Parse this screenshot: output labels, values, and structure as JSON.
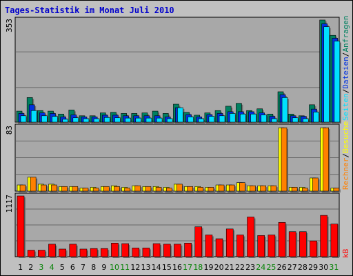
{
  "title": "Tages-Statistik im Monat Juli 2010",
  "colors": {
    "anfragen": "#008060",
    "dateien": "#0030E0",
    "seiten": "#00E0FF",
    "besuche": "#FFFF00",
    "rechner": "#FF8000",
    "kb": "#FF0000",
    "weekend_label": "#008000",
    "weekday_label": "#000000",
    "plot_bg": "#A8A8A8"
  },
  "chart_data": [
    {
      "type": "bar",
      "axis_max_label": "353",
      "ylim": [
        0,
        353
      ],
      "vertical_legend": [
        "Seiten",
        "/",
        "Dateien",
        "/",
        "Anfragen"
      ],
      "categories": [
        "1",
        "2",
        "3",
        "4",
        "5",
        "6",
        "7",
        "8",
        "9",
        "10",
        "11",
        "12",
        "13",
        "14",
        "15",
        "16",
        "17",
        "18",
        "19",
        "20",
        "21",
        "22",
        "23",
        "24",
        "25",
        "26",
        "27",
        "28",
        "29",
        "30",
        "31"
      ],
      "weekend_days": [
        "3",
        "4",
        "10",
        "11",
        "17",
        "18",
        "24",
        "25",
        "31"
      ],
      "series": [
        {
          "name": "Anfragen",
          "values": [
            38,
            85,
            40,
            38,
            28,
            42,
            22,
            22,
            32,
            34,
            30,
            30,
            32,
            38,
            30,
            62,
            34,
            24,
            32,
            40,
            55,
            65,
            40,
            46,
            28,
            105,
            28,
            22,
            60,
            353,
            300
          ]
        },
        {
          "name": "Dateien",
          "values": [
            30,
            60,
            32,
            30,
            18,
            25,
            18,
            18,
            24,
            24,
            22,
            22,
            22,
            22,
            18,
            50,
            26,
            18,
            26,
            30,
            36,
            36,
            36,
            32,
            20,
            95,
            22,
            20,
            45,
            340,
            290
          ]
        },
        {
          "name": "Seiten",
          "values": [
            22,
            40,
            22,
            20,
            10,
            15,
            12,
            12,
            16,
            15,
            14,
            14,
            14,
            14,
            12,
            50,
            18,
            12,
            20,
            22,
            30,
            28,
            28,
            25,
            12,
            85,
            15,
            12,
            35,
            330,
            280
          ]
        }
      ]
    },
    {
      "type": "bar",
      "axis_max_label": "83",
      "ylim": [
        0,
        83
      ],
      "vertical_legend": [
        "Rechner",
        "/",
        "Besuche"
      ],
      "series": [
        {
          "name": "Besuche",
          "values": [
            8,
            18,
            9,
            9,
            6,
            6,
            4,
            5,
            6,
            7,
            5,
            7,
            6,
            6,
            5,
            9,
            6,
            6,
            5,
            8,
            8,
            11,
            7,
            7,
            7,
            82,
            5,
            5,
            17,
            82,
            4
          ]
        },
        {
          "name": "Rechner",
          "values": [
            8,
            18,
            8,
            8,
            6,
            6,
            4,
            4,
            6,
            6,
            4,
            7,
            6,
            5,
            4,
            9,
            6,
            5,
            5,
            8,
            8,
            11,
            7,
            7,
            7,
            82,
            5,
            4,
            17,
            82,
            4
          ]
        }
      ]
    },
    {
      "type": "bar",
      "axis_max_label": "1117",
      "ylim": [
        0,
        1117
      ],
      "vertical_legend": [
        "kB"
      ],
      "series": [
        {
          "name": "kB",
          "values": [
            1117,
            120,
            120,
            230,
            140,
            230,
            140,
            150,
            150,
            250,
            240,
            160,
            160,
            240,
            230,
            230,
            250,
            550,
            400,
            330,
            510,
            400,
            730,
            390,
            400,
            630,
            460,
            460,
            290,
            760,
            600
          ]
        }
      ]
    }
  ]
}
